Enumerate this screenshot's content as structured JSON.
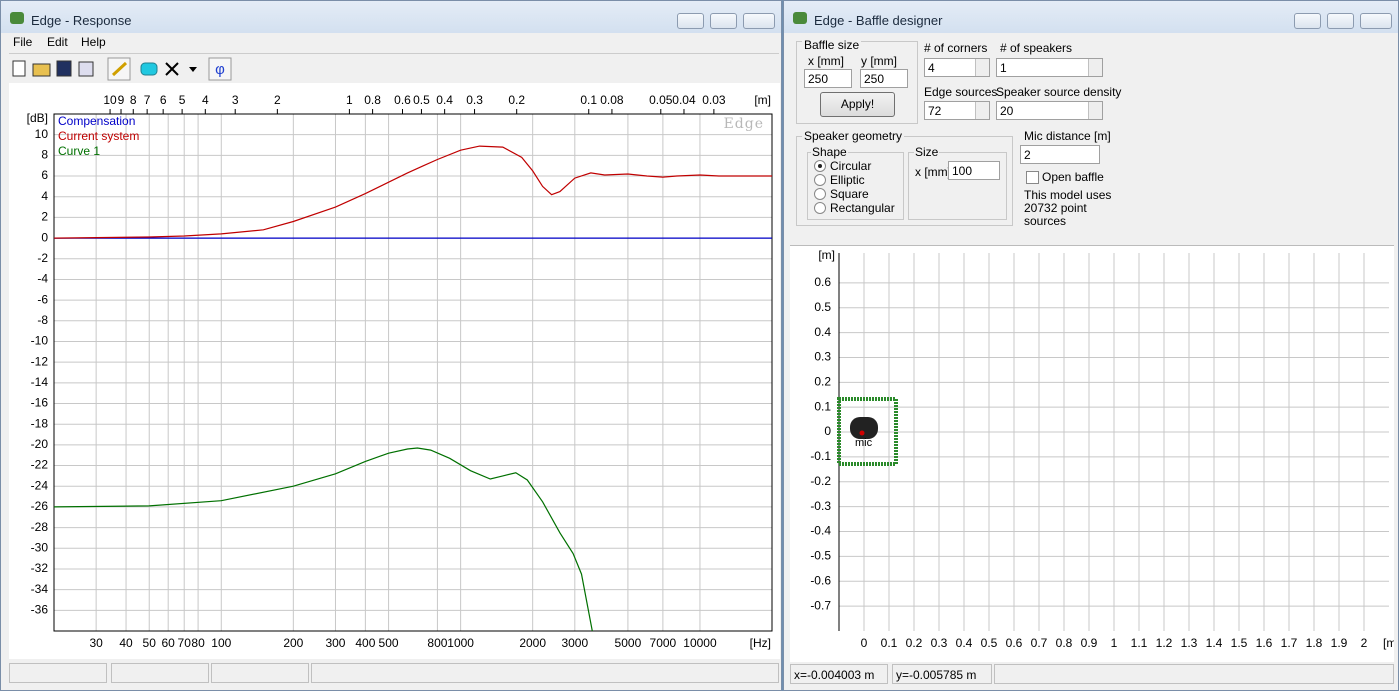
{
  "response_window": {
    "title": "Edge - Response",
    "menu": [
      "File",
      "Edit",
      "Help"
    ],
    "chart_data": {
      "type": "line",
      "watermark": "Edge",
      "x_label": "[Hz]",
      "y_label": "[dB]",
      "x2_label": "[m]",
      "xscale": "log",
      "xlim": [
        20,
        20000
      ],
      "xticks": [
        30,
        40,
        50,
        60,
        70,
        80,
        100,
        200,
        300,
        400,
        500,
        800,
        1000,
        2000,
        3000,
        5000,
        7000,
        10000
      ],
      "x2lim": [
        17.15,
        0.01715
      ],
      "x2ticks": [
        10,
        9,
        8,
        7,
        6,
        5,
        4,
        3,
        2,
        1,
        0.8,
        0.6,
        0.5,
        0.4,
        0.3,
        0.2,
        0.1,
        0.08,
        0.05,
        0.04,
        0.03
      ],
      "ylim": [
        -38,
        12
      ],
      "yticks": [
        10,
        8,
        6,
        4,
        2,
        0,
        -2,
        -4,
        -6,
        -8,
        -10,
        -12,
        -14,
        -16,
        -18,
        -20,
        -22,
        -24,
        -26,
        -28,
        -30,
        -32,
        -34,
        -36
      ],
      "grid": true,
      "series": [
        {
          "name": "Compensation",
          "color": "#0000c8",
          "x": [
            20,
            20000
          ],
          "values": [
            0,
            0
          ]
        },
        {
          "name": "Current system",
          "color": "#c00000",
          "x": [
            20,
            50,
            70,
            100,
            150,
            200,
            300,
            400,
            500,
            600,
            700,
            800,
            1000,
            1200,
            1500,
            1800,
            2000,
            2200,
            2400,
            2600,
            3000,
            3500,
            4000,
            5000,
            6000,
            7000,
            8000,
            10000,
            12000,
            15000,
            20000
          ],
          "values": [
            0,
            0.1,
            0.2,
            0.4,
            0.8,
            1.6,
            3.0,
            4.3,
            5.4,
            6.3,
            7.0,
            7.6,
            8.5,
            8.9,
            8.8,
            7.8,
            6.5,
            5.0,
            4.2,
            4.5,
            5.8,
            6.3,
            6.1,
            6.2,
            6.0,
            5.9,
            6.0,
            6.1,
            6.0,
            6.0,
            6.0
          ]
        },
        {
          "name": "Curve 1",
          "color": "#007000",
          "x": [
            20,
            50,
            100,
            200,
            300,
            400,
            500,
            600,
            660,
            750,
            900,
            1100,
            1330,
            1500,
            1700,
            1900,
            2200,
            2600,
            2950,
            3200,
            3550
          ],
          "values": [
            -26,
            -25.9,
            -25.4,
            -24,
            -22.8,
            -21.6,
            -20.8,
            -20.4,
            -20.3,
            -20.5,
            -21.3,
            -22.5,
            -23.3,
            -23,
            -22.7,
            -23.4,
            -25.5,
            -28.5,
            -30.5,
            -32.5,
            -38
          ]
        }
      ]
    }
  },
  "baffle_window": {
    "title": "Edge - Baffle designer",
    "baffle_size": {
      "label": "Baffle size",
      "x_label": "x [mm]",
      "x": 250,
      "y_label": "y [mm]",
      "y": 250,
      "apply": "Apply!"
    },
    "corners": {
      "label": "# of corners",
      "value": 4
    },
    "speakers": {
      "label": "# of speakers",
      "value": 1
    },
    "edge_sources": {
      "label": "Edge sources",
      "value": 72
    },
    "density": {
      "label": "Speaker source density",
      "value": 20
    },
    "geometry": {
      "label": "Speaker geometry",
      "shape_label": "Shape",
      "shapes": [
        "Circular",
        "Elliptic",
        "Square",
        "Rectangular"
      ],
      "size_label": "Size",
      "size_x_label": "x [mm]",
      "size_x": 100
    },
    "mic_distance": {
      "label": "Mic distance [m]",
      "value": 2
    },
    "open_baffle": "Open baffle",
    "info": "This model uses 20732 point sources",
    "chart_data": {
      "type": "baffle",
      "x_label": "[m]",
      "y_label": "[m]",
      "mic_label": "mic",
      "xlim": [
        -0.1,
        2.1
      ],
      "xticks": [
        0,
        0.1,
        0.2,
        0.3,
        0.4,
        0.5,
        0.6,
        0.7,
        0.8,
        0.9,
        1,
        1.1,
        1.2,
        1.3,
        1.4,
        1.5,
        1.6,
        1.7,
        1.8,
        1.9,
        2
      ],
      "ylim": [
        -0.8,
        0.72
      ],
      "yticks": [
        0.6,
        0.5,
        0.4,
        0.3,
        0.2,
        0.1,
        0,
        -0.1,
        -0.2,
        -0.3,
        -0.4,
        -0.5,
        -0.6,
        -0.7
      ],
      "grid": true
    },
    "status": {
      "x": "x=-0.004003 m",
      "y": "y=-0.005785 m"
    }
  }
}
